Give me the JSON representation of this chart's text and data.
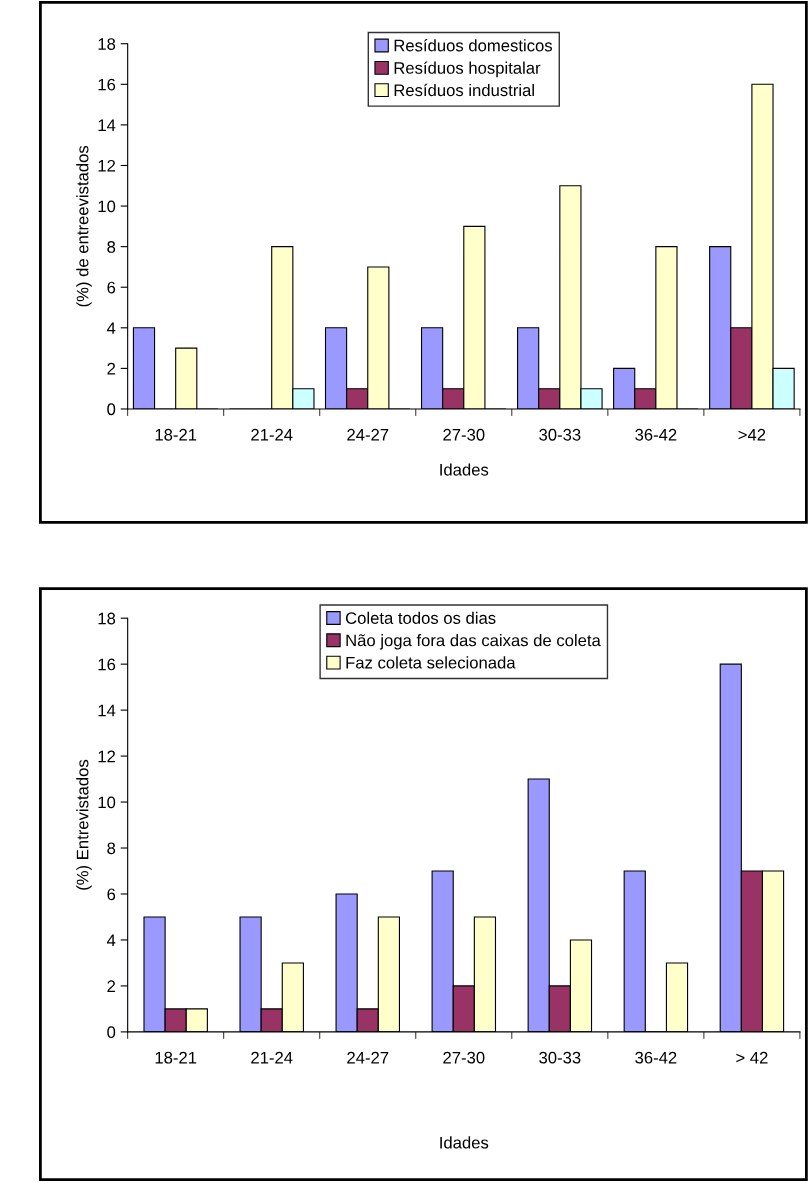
{
  "chart_data": [
    {
      "type": "bar",
      "xlabel": "Idades",
      "ylabel": "(%) de entreevistados",
      "categories": [
        "18-21",
        "21-24",
        "24-27",
        "27-30",
        "30-33",
        "36-42",
        ">42"
      ],
      "ylim": [
        0,
        18
      ],
      "yticks": [
        0,
        2,
        4,
        6,
        8,
        10,
        12,
        14,
        16,
        18
      ],
      "grid": false,
      "legend": "top",
      "series": [
        {
          "name": "Resíduos domesticos",
          "color": "#9999ff",
          "values": [
            4,
            0,
            4,
            4,
            4,
            2,
            8
          ]
        },
        {
          "name": "Resíduos hospitalar",
          "color": "#993366",
          "values": [
            0,
            0,
            1,
            1,
            1,
            1,
            4
          ]
        },
        {
          "name": "Resíduos industrial",
          "color": "#ffffcc",
          "values": [
            3,
            8,
            7,
            9,
            11,
            8,
            16
          ]
        },
        {
          "color": "#ccffff",
          "values": [
            0,
            1,
            0,
            0,
            1,
            0,
            2
          ]
        }
      ]
    },
    {
      "type": "bar",
      "xlabel": "Idades",
      "ylabel": "(%) Entrevistados",
      "categories": [
        "18-21",
        "21-24",
        "24-27",
        "27-30",
        "30-33",
        "36-42",
        "> 42"
      ],
      "ylim": [
        0,
        18
      ],
      "yticks": [
        0,
        2,
        4,
        6,
        8,
        10,
        12,
        14,
        16,
        18
      ],
      "grid": false,
      "legend": "top",
      "series": [
        {
          "name": "Coleta todos os dias",
          "color": "#9999ff",
          "values": [
            5,
            5,
            6,
            7,
            11,
            7,
            16
          ]
        },
        {
          "name": "Não joga fora das caixas de coleta",
          "color": "#993366",
          "values": [
            1,
            1,
            1,
            2,
            2,
            0,
            7
          ]
        },
        {
          "name": "Faz coleta selecionada",
          "color": "#ffffcc",
          "values": [
            1,
            3,
            5,
            5,
            4,
            3,
            7
          ]
        }
      ]
    }
  ]
}
